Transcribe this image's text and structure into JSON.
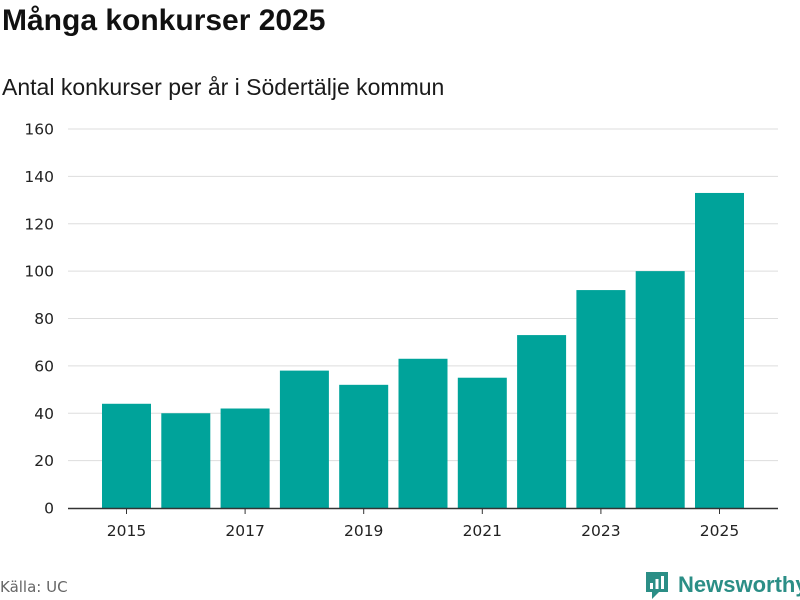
{
  "header": {
    "title": "Många konkurser 2025",
    "subtitle": "Antal konkurser per år i Södertälje kommun"
  },
  "footer": {
    "source": "Källa: UC",
    "brand": "Newsworthy",
    "brand_icon": "bar-chart-logo-icon"
  },
  "colors": {
    "bar": "#00a39a",
    "grid": "#dddddd",
    "axis": "#333333",
    "brand": "#2b8e86"
  },
  "chart_data": {
    "type": "bar",
    "title": "Många konkurser 2025",
    "subtitle": "Antal konkurser per år i Södertälje kommun",
    "xlabel": "",
    "ylabel": "",
    "categories": [
      "2015",
      "2016",
      "2017",
      "2018",
      "2019",
      "2020",
      "2021",
      "2022",
      "2023",
      "2024",
      "2025"
    ],
    "values": [
      44,
      40,
      42,
      58,
      52,
      63,
      55,
      73,
      92,
      100,
      133
    ],
    "x_tick_labels": [
      "2015",
      "2017",
      "2019",
      "2021",
      "2023",
      "2025"
    ],
    "yticks": [
      0,
      20,
      40,
      60,
      80,
      100,
      120,
      140,
      160
    ],
    "ylim": [
      0,
      160
    ],
    "grid": true,
    "legend": "none"
  }
}
